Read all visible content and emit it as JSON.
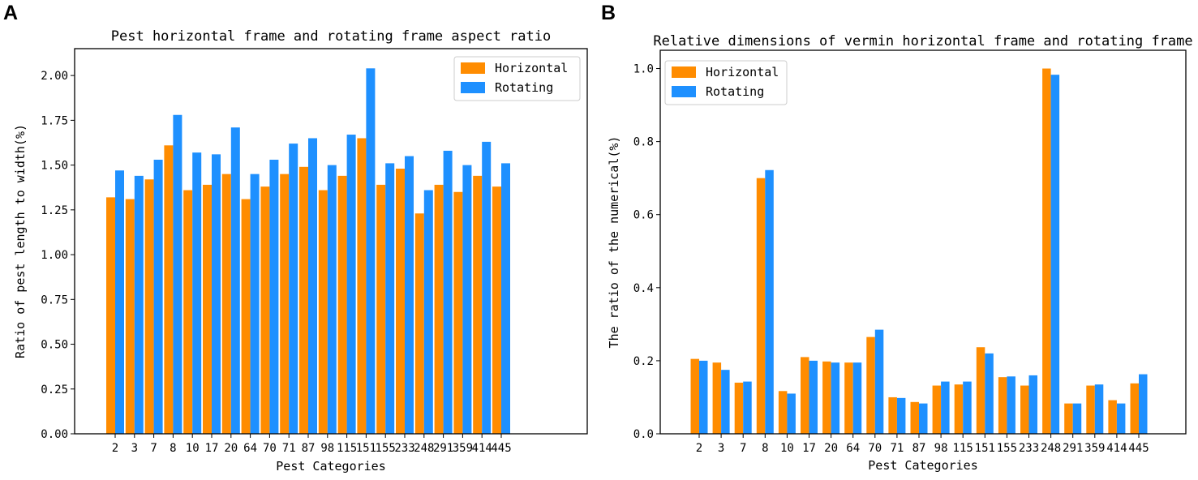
{
  "panels": [
    {
      "letter": "A"
    },
    {
      "letter": "B"
    }
  ],
  "colors": {
    "horizontal": "#ff8c00",
    "rotating": "#1e90ff",
    "axis": "#000000"
  },
  "chart_data": [
    {
      "type": "bar",
      "title": "Pest horizontal frame and rotating frame aspect ratio",
      "xlabel": "Pest Categories",
      "ylabel": "Ratio of pest length to width(%)",
      "ylim": [
        0,
        2.15
      ],
      "yticks": [
        "0.00",
        "0.25",
        "0.50",
        "0.75",
        "1.00",
        "1.25",
        "1.50",
        "1.75",
        "2.00"
      ],
      "legend_position": "top-right",
      "categories": [
        "2",
        "3",
        "7",
        "8",
        "10",
        "17",
        "20",
        "64",
        "70",
        "71",
        "87",
        "98",
        "115",
        "151",
        "155",
        "233",
        "248",
        "291",
        "359",
        "414",
        "445"
      ],
      "series": [
        {
          "name": "Horizontal",
          "values": [
            1.32,
            1.31,
            1.42,
            1.61,
            1.36,
            1.39,
            1.45,
            1.31,
            1.38,
            1.45,
            1.49,
            1.36,
            1.44,
            1.65,
            1.39,
            1.48,
            1.23,
            1.39,
            1.35,
            1.44,
            1.38
          ]
        },
        {
          "name": "Rotating",
          "values": [
            1.47,
            1.44,
            1.53,
            1.78,
            1.57,
            1.56,
            1.71,
            1.45,
            1.53,
            1.62,
            1.65,
            1.5,
            1.67,
            2.04,
            1.51,
            1.55,
            1.36,
            1.58,
            1.5,
            1.63,
            1.51
          ]
        }
      ]
    },
    {
      "type": "bar",
      "title": "Relative dimensions of vermin horizontal frame and rotating frame",
      "xlabel": "Pest Categories",
      "ylabel": "The ratio of the numerical(%)",
      "ylim": [
        0,
        1.05
      ],
      "yticks": [
        "0.0",
        "0.2",
        "0.4",
        "0.6",
        "0.8",
        "1.0"
      ],
      "legend_position": "top-left",
      "categories": [
        "2",
        "3",
        "7",
        "8",
        "10",
        "17",
        "20",
        "64",
        "70",
        "71",
        "87",
        "98",
        "115",
        "151",
        "155",
        "233",
        "248",
        "291",
        "359",
        "414",
        "445"
      ],
      "series": [
        {
          "name": "Horizontal",
          "values": [
            0.205,
            0.195,
            0.14,
            0.7,
            0.117,
            0.21,
            0.198,
            0.195,
            0.265,
            0.1,
            0.087,
            0.132,
            0.135,
            0.237,
            0.155,
            0.132,
            1.0,
            0.083,
            0.132,
            0.092,
            0.138
          ]
        },
        {
          "name": "Rotating",
          "values": [
            0.2,
            0.175,
            0.143,
            0.722,
            0.11,
            0.2,
            0.195,
            0.195,
            0.285,
            0.098,
            0.083,
            0.143,
            0.143,
            0.22,
            0.157,
            0.16,
            0.983,
            0.083,
            0.135,
            0.083,
            0.163
          ]
        }
      ]
    }
  ]
}
